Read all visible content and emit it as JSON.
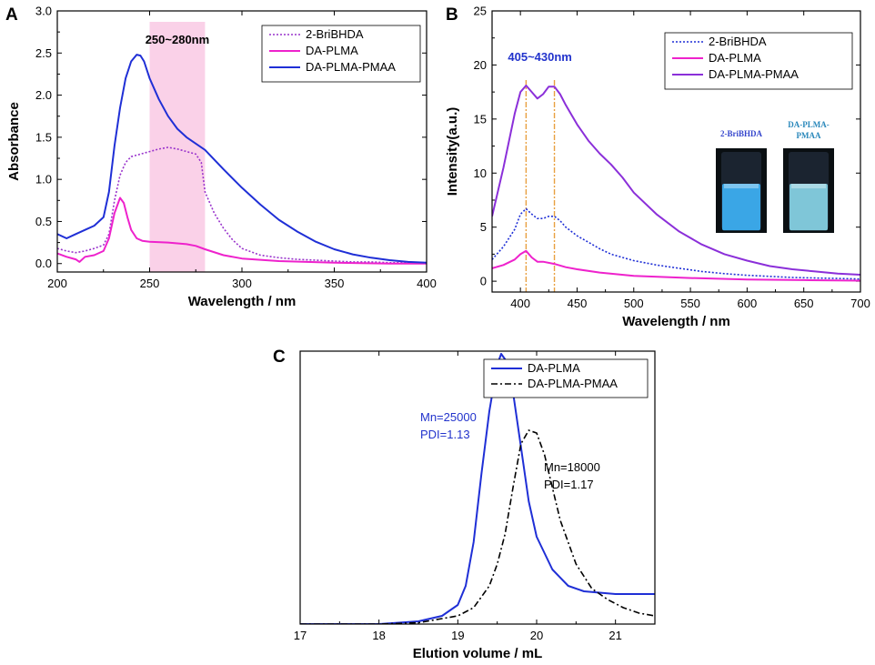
{
  "chart_data": [
    {
      "panel": "A",
      "type": "line",
      "xlabel": "Wavelength / nm",
      "ylabel": "Absorbance",
      "xlim": [
        200,
        400
      ],
      "ylim": [
        -0.1,
        3.0
      ],
      "xticks": [
        200,
        250,
        300,
        350,
        400
      ],
      "yticks": [
        0.0,
        0.5,
        1.0,
        1.5,
        2.0,
        2.5,
        3.0
      ],
      "xtick_labels": [
        "200",
        "250",
        "300",
        "350",
        "400"
      ],
      "ytick_labels": [
        "0.0",
        "0.5",
        "1.0",
        "1.5",
        "2.0",
        "2.5",
        "3.0"
      ],
      "legend_position": "top-right",
      "highlight_band": {
        "x_range": [
          250,
          280
        ],
        "label": "250~280nm",
        "color": "#f9c9e4"
      },
      "series": [
        {
          "name": "2-BriBHDA",
          "color": "#9933cc",
          "style": "dotted",
          "x": [
            200,
            205,
            210,
            215,
            220,
            225,
            228,
            231,
            234,
            237,
            240,
            245,
            250,
            255,
            260,
            265,
            270,
            275,
            278,
            280,
            285,
            290,
            295,
            300,
            310,
            320,
            330,
            340,
            350,
            360,
            370,
            380,
            390,
            400
          ],
          "y": [
            0.18,
            0.15,
            0.13,
            0.15,
            0.18,
            0.22,
            0.35,
            0.75,
            1.05,
            1.2,
            1.27,
            1.3,
            1.33,
            1.36,
            1.38,
            1.36,
            1.33,
            1.3,
            1.2,
            0.85,
            0.6,
            0.42,
            0.28,
            0.18,
            0.1,
            0.07,
            0.05,
            0.04,
            0.03,
            0.02,
            0.02,
            0.01,
            0.01,
            0.0
          ]
        },
        {
          "name": "DA-PLMA",
          "color": "#ee22cc",
          "style": "solid",
          "x": [
            200,
            205,
            210,
            212,
            215,
            220,
            225,
            228,
            231,
            234,
            236,
            238,
            240,
            243,
            246,
            250,
            260,
            270,
            275,
            280,
            290,
            300,
            320,
            350,
            380,
            400
          ],
          "y": [
            0.12,
            0.08,
            0.05,
            0.02,
            0.08,
            0.1,
            0.15,
            0.3,
            0.6,
            0.78,
            0.72,
            0.55,
            0.4,
            0.3,
            0.27,
            0.26,
            0.25,
            0.23,
            0.21,
            0.17,
            0.1,
            0.06,
            0.03,
            0.01,
            0.0,
            0.0
          ]
        },
        {
          "name": "DA-PLMA-PMAA",
          "color": "#1f2fd6",
          "style": "solid",
          "x": [
            200,
            205,
            210,
            215,
            220,
            225,
            228,
            231,
            234,
            237,
            240,
            243,
            245,
            247,
            250,
            255,
            260,
            265,
            270,
            280,
            290,
            300,
            310,
            320,
            330,
            340,
            350,
            360,
            370,
            380,
            390,
            400
          ],
          "y": [
            0.35,
            0.3,
            0.35,
            0.4,
            0.45,
            0.55,
            0.85,
            1.4,
            1.85,
            2.2,
            2.4,
            2.48,
            2.47,
            2.4,
            2.2,
            1.95,
            1.75,
            1.6,
            1.5,
            1.35,
            1.12,
            0.9,
            0.7,
            0.52,
            0.38,
            0.26,
            0.17,
            0.11,
            0.07,
            0.04,
            0.02,
            0.01
          ]
        }
      ]
    },
    {
      "panel": "B",
      "type": "line",
      "xlabel": "Wavelength / nm",
      "ylabel": "Intensity(a.u.)",
      "xlim": [
        375,
        700
      ],
      "ylim": [
        -1,
        25
      ],
      "xticks": [
        400,
        450,
        500,
        550,
        600,
        650,
        700
      ],
      "yticks": [
        0,
        5,
        10,
        15,
        20,
        25
      ],
      "xtick_labels": [
        "400",
        "450",
        "500",
        "550",
        "600",
        "650",
        "700"
      ],
      "ytick_labels": [
        "0",
        "5",
        "10",
        "15",
        "20",
        "25"
      ],
      "legend_position": "top-right",
      "peak_annotation": {
        "label": "405~430nm",
        "peaks": [
          405,
          430
        ],
        "color": "#2233cc"
      },
      "vial_labels": [
        "2-BriBHDA",
        "DA-PLMA-",
        "PMAA"
      ],
      "series": [
        {
          "name": "2-BriBHDA",
          "color": "#1f2fd6",
          "style": "dotted",
          "x": [
            375,
            385,
            395,
            400,
            405,
            410,
            415,
            420,
            425,
            430,
            435,
            440,
            450,
            460,
            470,
            480,
            490,
            500,
            520,
            540,
            560,
            580,
            600,
            620,
            640,
            660,
            680,
            700
          ],
          "y": [
            2.0,
            3.2,
            4.8,
            6.2,
            6.7,
            6.2,
            5.8,
            5.8,
            6.0,
            6.0,
            5.6,
            5.0,
            4.2,
            3.6,
            3.0,
            2.5,
            2.2,
            1.9,
            1.5,
            1.2,
            0.9,
            0.7,
            0.55,
            0.45,
            0.35,
            0.3,
            0.25,
            0.2
          ]
        },
        {
          "name": "DA-PLMA",
          "color": "#ee22cc",
          "style": "solid",
          "x": [
            375,
            385,
            395,
            400,
            405,
            410,
            415,
            420,
            430,
            440,
            450,
            470,
            500,
            550,
            600,
            650,
            700
          ],
          "y": [
            1.2,
            1.5,
            2.0,
            2.5,
            2.8,
            2.2,
            1.8,
            1.8,
            1.6,
            1.3,
            1.1,
            0.8,
            0.5,
            0.3,
            0.15,
            0.1,
            0.05
          ]
        },
        {
          "name": "DA-PLMA-PMAA",
          "color": "#8b2fd9",
          "style": "solid",
          "x": [
            375,
            385,
            395,
            400,
            405,
            410,
            415,
            420,
            425,
            430,
            435,
            440,
            450,
            460,
            470,
            480,
            490,
            500,
            520,
            540,
            560,
            580,
            600,
            620,
            640,
            660,
            680,
            700
          ],
          "y": [
            6.0,
            10.5,
            15.5,
            17.5,
            18.1,
            17.5,
            16.9,
            17.3,
            18.0,
            18.0,
            17.3,
            16.3,
            14.5,
            13.0,
            11.8,
            10.8,
            9.6,
            8.2,
            6.2,
            4.6,
            3.4,
            2.5,
            1.9,
            1.4,
            1.1,
            0.9,
            0.7,
            0.6
          ]
        }
      ]
    },
    {
      "panel": "C",
      "type": "line",
      "xlabel": "Elution volume / mL",
      "ylabel": "",
      "xlim": [
        17,
        21.5
      ],
      "ylim": [
        0,
        1.0
      ],
      "xticks": [
        17,
        18,
        19,
        20,
        21
      ],
      "xtick_labels": [
        "17",
        "18",
        "19",
        "20",
        "21"
      ],
      "legend_position": "top-right",
      "annotations": [
        {
          "text": "Mn=25000",
          "color": "#2233cc"
        },
        {
          "text": "PDI=1.13",
          "color": "#2233cc"
        },
        {
          "text": "Mn=18000",
          "color": "#000000"
        },
        {
          "text": "PDI=1.17",
          "color": "#000000"
        }
      ],
      "series": [
        {
          "name": "DA-PLMA",
          "color": "#1f2fd6",
          "style": "solid",
          "x": [
            17.0,
            17.5,
            18.0,
            18.5,
            18.8,
            19.0,
            19.1,
            19.2,
            19.3,
            19.4,
            19.5,
            19.55,
            19.6,
            19.7,
            19.8,
            19.9,
            20.0,
            20.2,
            20.4,
            20.6,
            20.8,
            21.0,
            21.2,
            21.5
          ],
          "y": [
            0.0,
            0.0,
            0.0,
            0.01,
            0.03,
            0.07,
            0.14,
            0.3,
            0.55,
            0.78,
            0.95,
            0.99,
            0.97,
            0.85,
            0.65,
            0.45,
            0.32,
            0.2,
            0.14,
            0.12,
            0.115,
            0.11,
            0.11,
            0.11
          ]
        },
        {
          "name": "DA-PLMA-PMAA",
          "color": "#000000",
          "style": "dashdot",
          "x": [
            17.0,
            18.0,
            18.5,
            19.0,
            19.2,
            19.4,
            19.5,
            19.6,
            19.7,
            19.8,
            19.9,
            20.0,
            20.1,
            20.2,
            20.3,
            20.5,
            20.7,
            20.9,
            21.1,
            21.3,
            21.5
          ],
          "y": [
            0.0,
            0.0,
            0.005,
            0.03,
            0.06,
            0.14,
            0.22,
            0.33,
            0.5,
            0.66,
            0.71,
            0.7,
            0.62,
            0.5,
            0.38,
            0.22,
            0.13,
            0.09,
            0.06,
            0.04,
            0.03
          ]
        }
      ]
    }
  ]
}
